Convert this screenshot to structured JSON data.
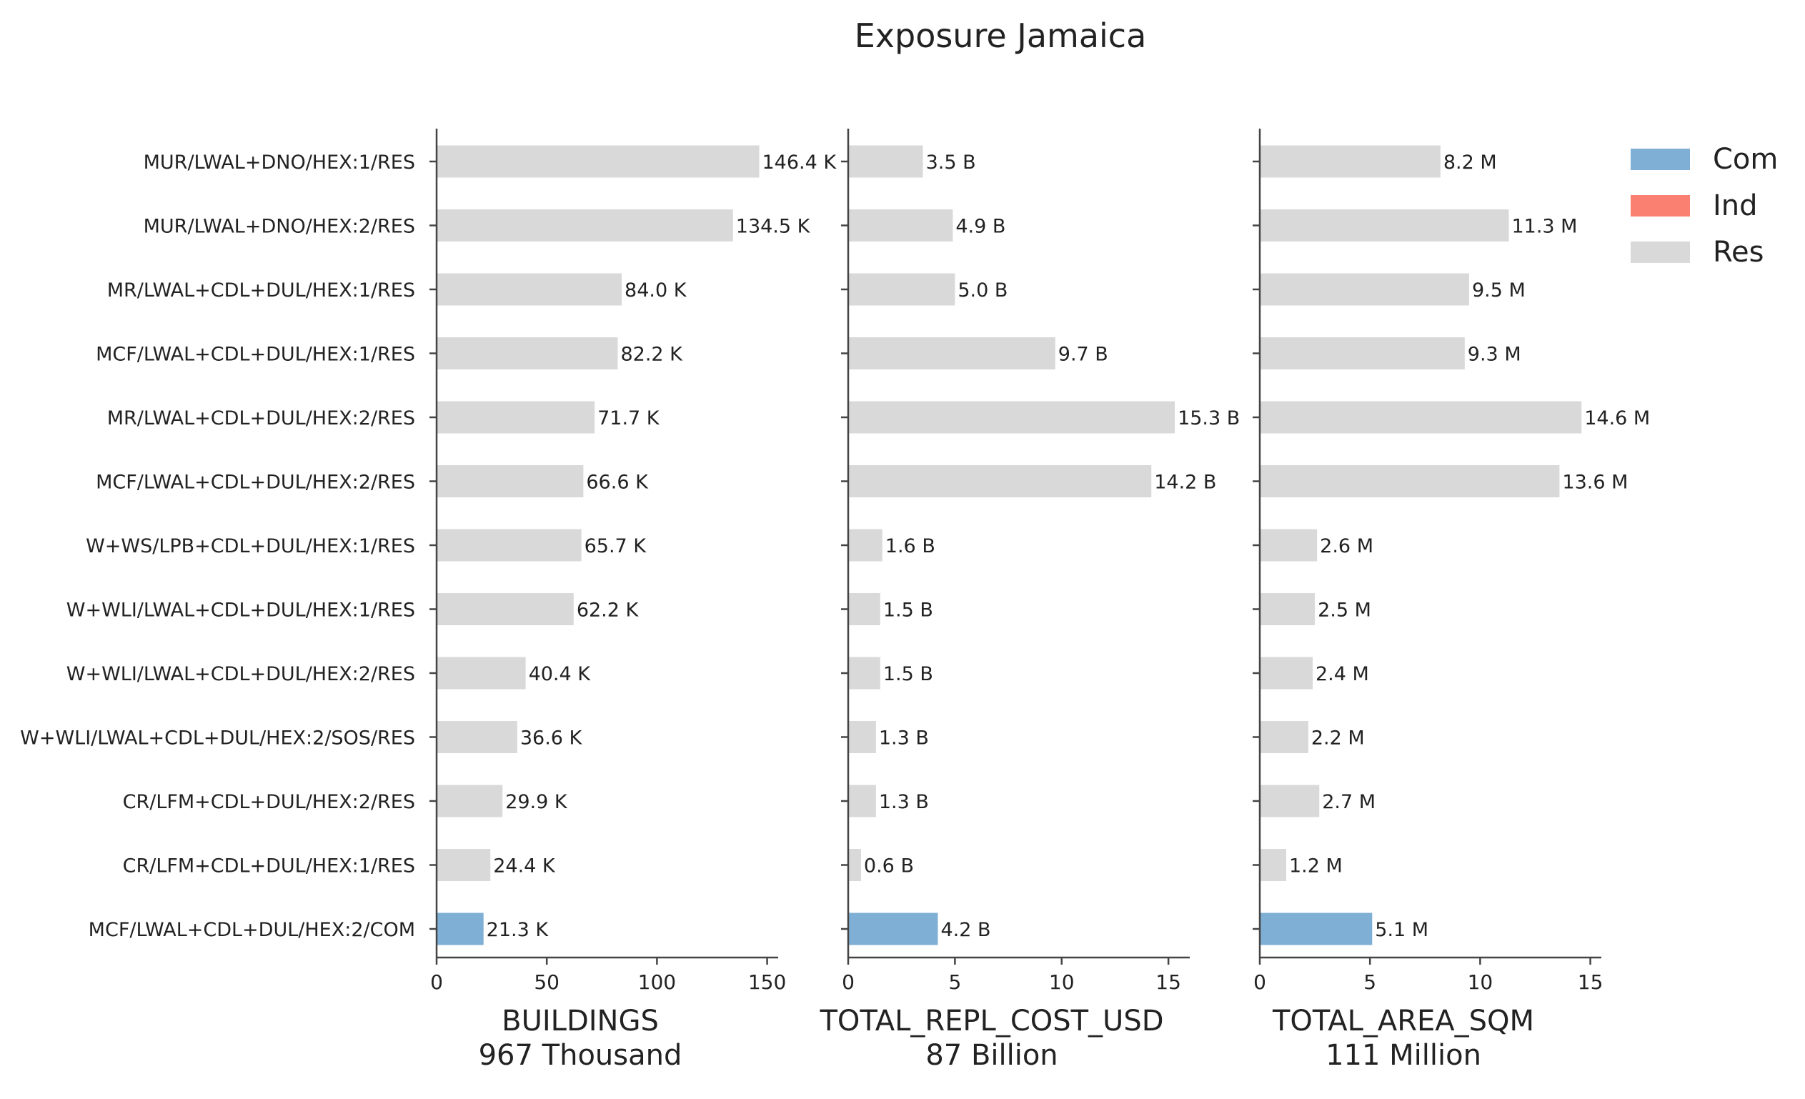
{
  "title": "Exposure Jamaica",
  "colors": {
    "Com": "#7fafd4",
    "Ind": "#fa8072",
    "Res": "#d9d9d9",
    "axis": "#444444",
    "text": "#222222"
  },
  "legend": {
    "placement": "top-right",
    "items": [
      {
        "label": "Com",
        "color": "#7fafd4"
      },
      {
        "label": "Ind",
        "color": "#fa8072"
      },
      {
        "label": "Res",
        "color": "#d9d9d9"
      }
    ]
  },
  "chart_data": {
    "type": "bar",
    "orientation": "horizontal",
    "title": "Exposure Jamaica",
    "categories": [
      "MUR/LWAL+DNO/HEX:1/RES",
      "MUR/LWAL+DNO/HEX:2/RES",
      "MR/LWAL+CDL+DUL/HEX:1/RES",
      "MCF/LWAL+CDL+DUL/HEX:1/RES",
      "MR/LWAL+CDL+DUL/HEX:2/RES",
      "MCF/LWAL+CDL+DUL/HEX:2/RES",
      "W+WS/LPB+CDL+DUL/HEX:1/RES",
      "W+WLI/LWAL+CDL+DUL/HEX:1/RES",
      "W+WLI/LWAL+CDL+DUL/HEX:2/RES",
      "W+WLI/LWAL+CDL+DUL/HEX:2/SOS/RES",
      "CR/LFM+CDL+DUL/HEX:2/RES",
      "CR/LFM+CDL+DUL/HEX:1/RES",
      "MCF/LWAL+CDL+DUL/HEX:2/COM"
    ],
    "occupancy": [
      "Res",
      "Res",
      "Res",
      "Res",
      "Res",
      "Res",
      "Res",
      "Res",
      "Res",
      "Res",
      "Res",
      "Res",
      "Com"
    ],
    "panels": [
      {
        "xlabel": "BUILDINGS",
        "total_label": "967 Thousand",
        "xlim": [
          0,
          155
        ],
        "ticks": [
          0,
          50,
          100,
          150
        ],
        "values": [
          146.4,
          134.5,
          84.0,
          82.2,
          71.7,
          66.6,
          65.7,
          62.2,
          40.4,
          36.6,
          29.9,
          24.4,
          21.3
        ],
        "labels": [
          "146.4 K",
          "134.5 K",
          "84.0 K",
          "82.2 K",
          "71.7 K",
          "66.6 K",
          "65.7 K",
          "62.2 K",
          "40.4 K",
          "36.6 K",
          "29.9 K",
          "24.4 K",
          "21.3 K"
        ]
      },
      {
        "xlabel": "TOTAL_REPL_COST_USD",
        "total_label": "87 Billion",
        "xlim": [
          0,
          16
        ],
        "ticks": [
          0,
          5,
          10,
          15
        ],
        "values": [
          3.5,
          4.9,
          5.0,
          9.7,
          15.3,
          14.2,
          1.6,
          1.5,
          1.5,
          1.3,
          1.3,
          0.6,
          4.2
        ],
        "labels": [
          "3.5 B",
          "4.9 B",
          "5.0 B",
          "9.7 B",
          "15.3 B",
          "14.2 B",
          "1.6 B",
          "1.5 B",
          "1.5 B",
          "1.3 B",
          "1.3 B",
          "0.6 B",
          "4.2 B"
        ]
      },
      {
        "xlabel": "TOTAL_AREA_SQM",
        "total_label": "111 Million",
        "xlim": [
          0,
          15.5
        ],
        "ticks": [
          0,
          5,
          10,
          15
        ],
        "values": [
          8.2,
          11.3,
          9.5,
          9.3,
          14.6,
          13.6,
          2.6,
          2.5,
          2.4,
          2.2,
          2.7,
          1.2,
          5.1
        ],
        "labels": [
          "8.2 M",
          "11.3 M",
          "9.5 M",
          "9.3 M",
          "14.6 M",
          "13.6 M",
          "2.6 M",
          "2.5 M",
          "2.4 M",
          "2.2 M",
          "2.7 M",
          "1.2 M",
          "5.1 M"
        ]
      }
    ]
  }
}
